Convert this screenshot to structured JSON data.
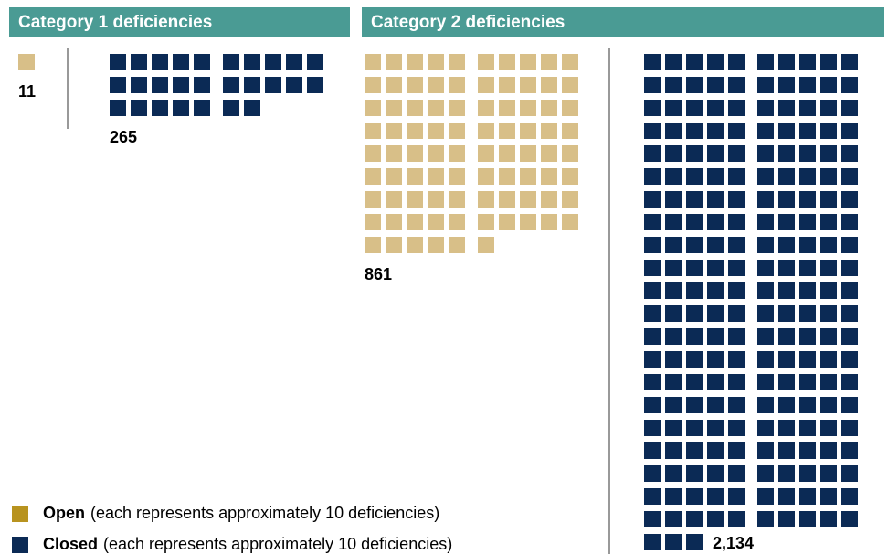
{
  "chart_data": {
    "type": "waffle",
    "categories": [
      "Category 1 deficiencies",
      "Category 2 deficiencies"
    ],
    "header_color": "#4a9b94",
    "unit": 10,
    "legend_note": "(each represents approximately 10 deficiencies)",
    "series": [
      {
        "name": "Open",
        "color": "#d8bf88",
        "legend_color": "#b8931f",
        "values": [
          11,
          861
        ]
      },
      {
        "name": "Closed",
        "color": "#0b2a55",
        "legend_color": "#0b2a55",
        "values": [
          265,
          2134
        ],
        "value_labels": [
          "265",
          "2,134"
        ]
      }
    ]
  }
}
